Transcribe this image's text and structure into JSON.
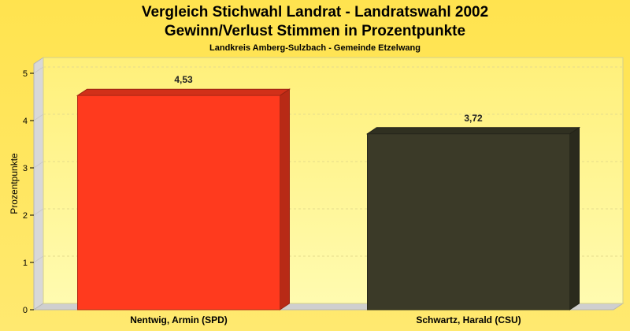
{
  "chart_data": {
    "type": "bar",
    "title": "Vergleich Stichwahl Landrat - Landratswahl 2002",
    "title2": "Gewinn/Verlust Stimmen in Prozentpunkte",
    "subtitle": "Landkreis Amberg-Sulzbach - Gemeinde Etzelwang",
    "xlabel": "",
    "ylabel": "Prozentpunkte",
    "categories": [
      "Nentwig, Armin (SPD)",
      "Schwartz, Harald (CSU)"
    ],
    "values": [
      4.53,
      3.72
    ],
    "value_labels": [
      "4,53",
      "3,72"
    ],
    "colors": [
      "#ff3a1e",
      "#3b3a28"
    ],
    "ylim": [
      0,
      5
    ],
    "yticks": [
      "0",
      "1",
      "2",
      "3",
      "4",
      "5"
    ],
    "grid": true,
    "legend": "none"
  }
}
